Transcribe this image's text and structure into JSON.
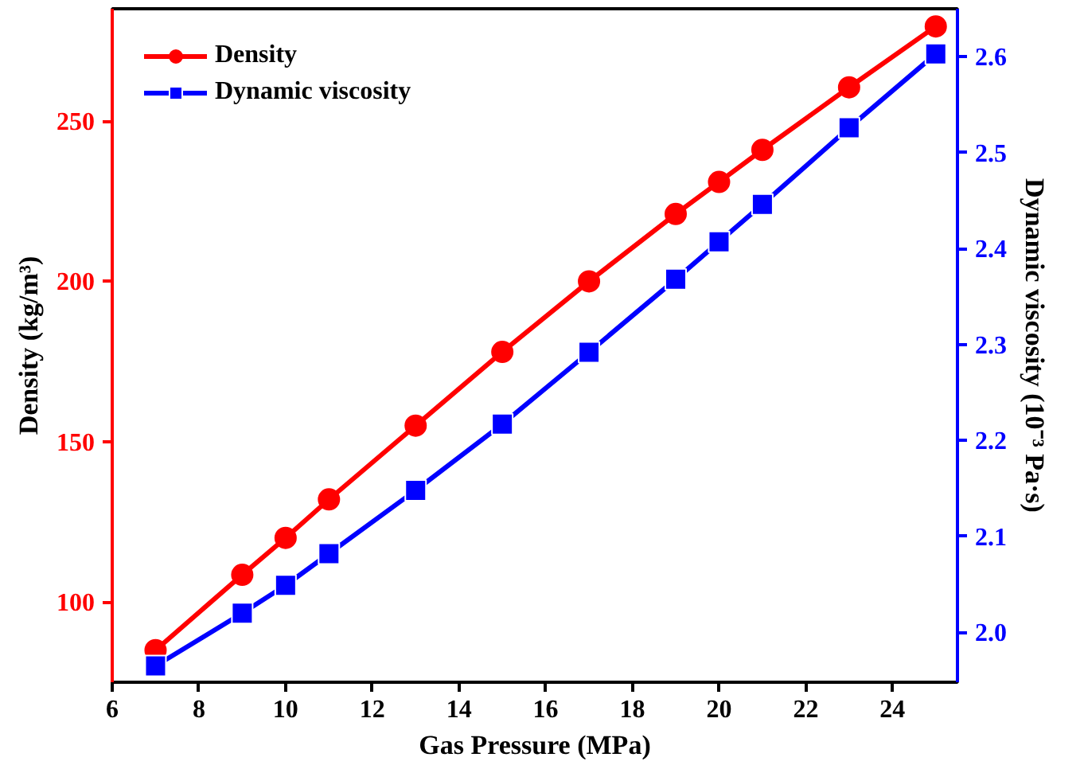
{
  "chart_data": {
    "type": "line",
    "xlabel": "Gas Pressure (MPa)",
    "ylabel": "Density (kg/m³)",
    "y2label": "Dynamic viscosity (10⁻³ Pa·s)",
    "x": [
      7,
      9,
      10,
      11,
      13,
      15,
      17,
      19,
      20,
      21,
      23,
      25
    ],
    "series": [
      {
        "name": "Density",
        "color": "#ff0000",
        "marker": "circle",
        "values": [
          85,
          108.5,
          120,
          132,
          155,
          178,
          200,
          221,
          231,
          241,
          260.5,
          279.5
        ]
      },
      {
        "name": "Dynamic viscosity",
        "color": "#0000ff",
        "marker": "square",
        "axis": "y2",
        "values": [
          1.965,
          2.02,
          2.049,
          2.082,
          2.148,
          2.217,
          2.292,
          2.368,
          2.407,
          2.446,
          2.526,
          2.603
        ]
      }
    ],
    "xlim": [
      6,
      25.5
    ],
    "xticks": [
      6,
      8,
      10,
      12,
      14,
      16,
      18,
      20,
      22,
      24
    ],
    "ylim": [
      75,
      285
    ],
    "yticks": [
      100,
      150,
      200,
      250
    ],
    "y2lim": [
      1.948,
      2.65
    ],
    "y2ticks": [
      {
        "value": 2.0,
        "label": "2.0"
      },
      2.1,
      2.2,
      2.3,
      2.4,
      2.5,
      2.6
    ],
    "grid": false,
    "legend": "top left",
    "line_style": "solid"
  }
}
